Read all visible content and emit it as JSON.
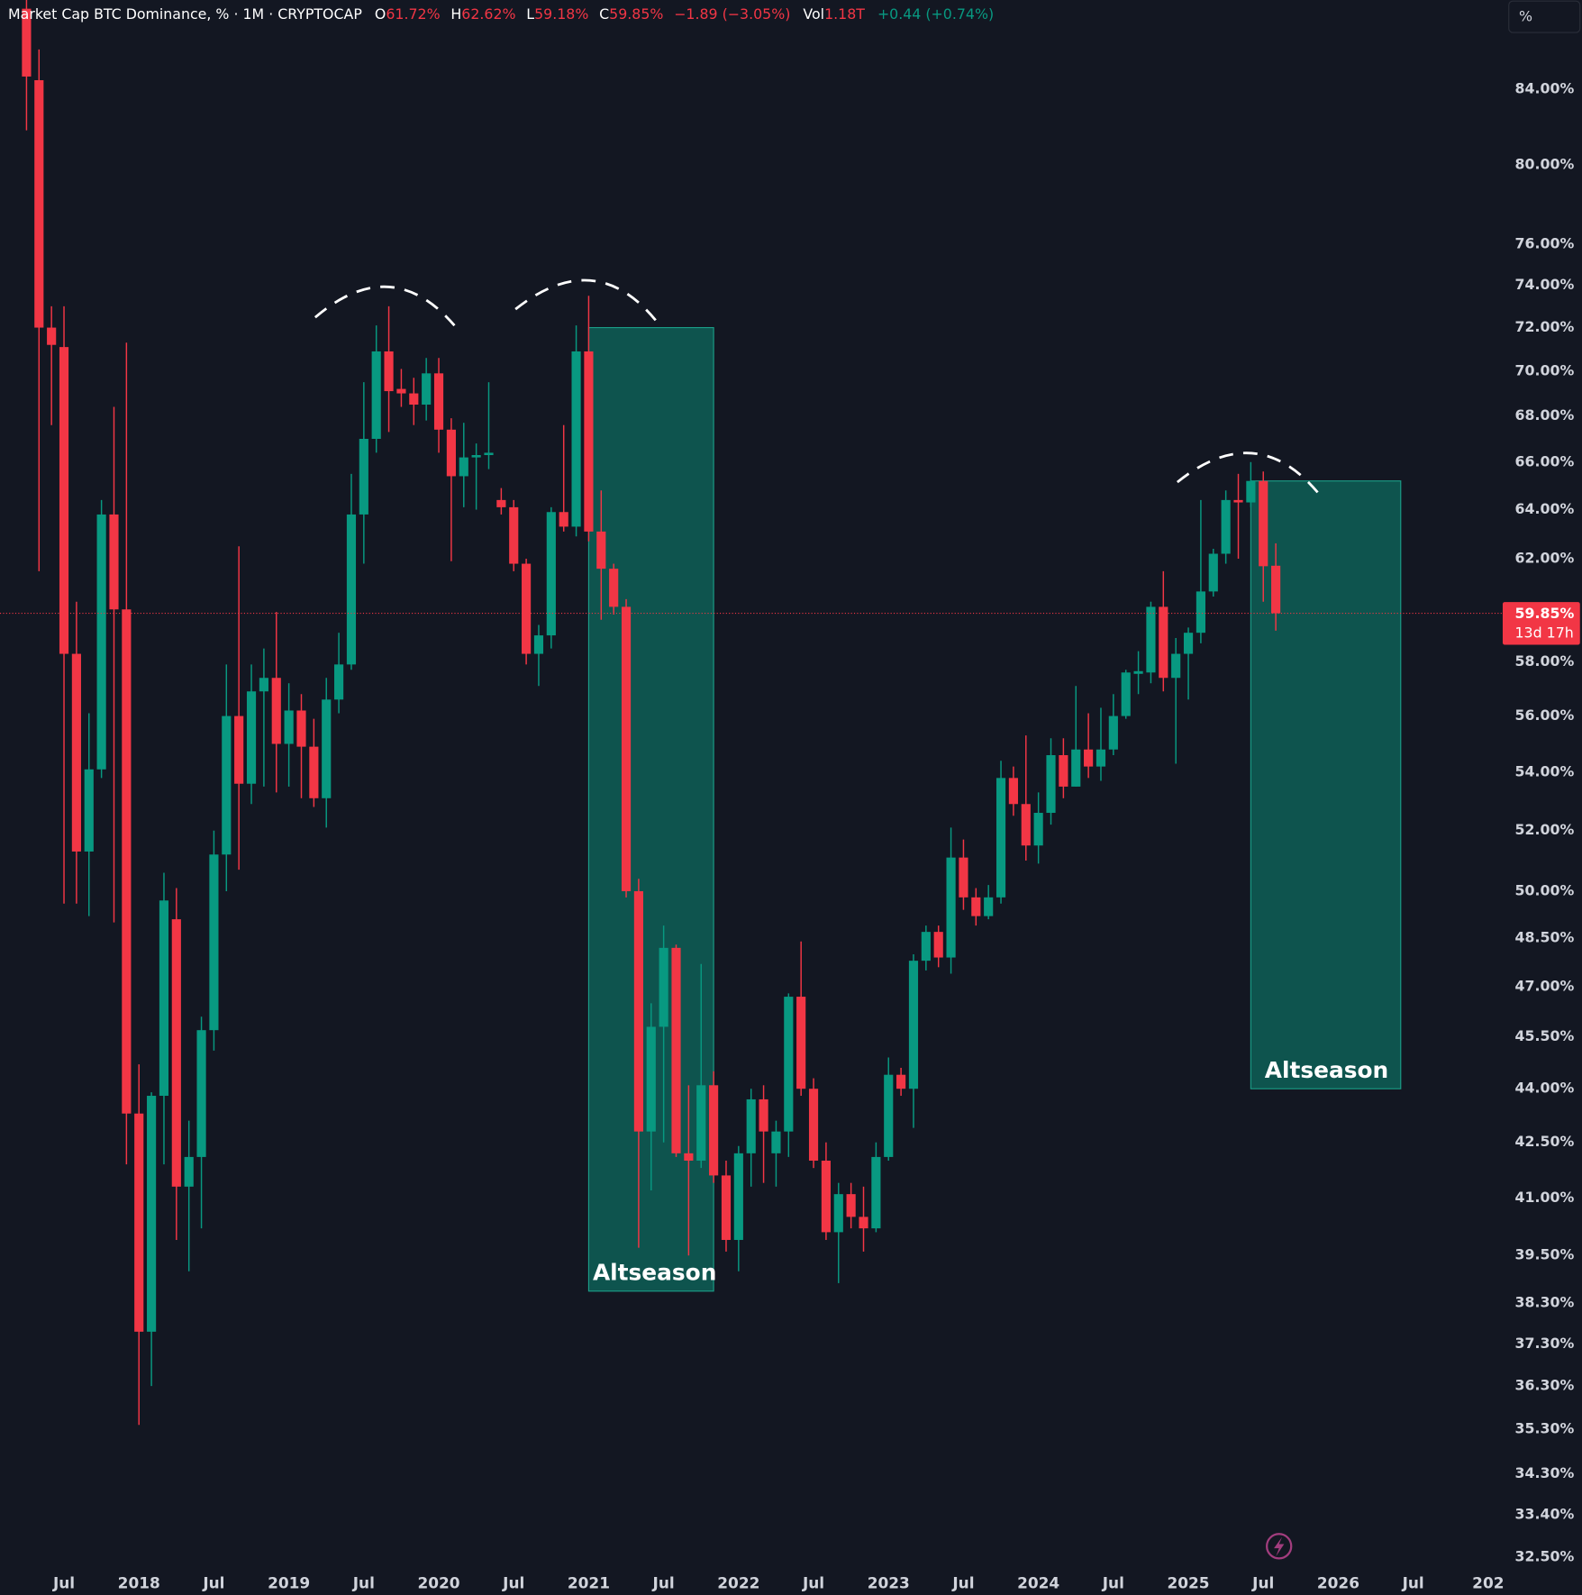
{
  "header": {
    "symbol": "Market Cap BTC Dominance, % · 1M · CRYPTOCAP",
    "fields": [
      {
        "key": "O",
        "value": "61.72%"
      },
      {
        "key": "H",
        "value": "62.62%"
      },
      {
        "key": "L",
        "value": "59.18%"
      },
      {
        "key": "C",
        "value": "59.85%"
      }
    ],
    "change": "−1.89 (−3.05%)",
    "volume_key": "Vol",
    "volume": "1.18T",
    "volume_change": "+0.44 (+0.74%)"
  },
  "toolbar": {
    "unit_button": "%"
  },
  "chart_data": {
    "type": "candlestick",
    "log_scale": true,
    "grid": false,
    "up_color": "#089981",
    "down_color": "#f23645",
    "x": [
      "2017-04",
      "2017-05",
      "2017-06",
      "2017-07",
      "2017-08",
      "2017-09",
      "2017-10",
      "2017-11",
      "2017-12",
      "2018-01",
      "2018-02",
      "2018-03",
      "2018-04",
      "2018-05",
      "2018-06",
      "2018-07",
      "2018-08",
      "2018-09",
      "2018-10",
      "2018-11",
      "2018-12",
      "2019-01",
      "2019-02",
      "2019-03",
      "2019-04",
      "2019-05",
      "2019-06",
      "2019-07",
      "2019-08",
      "2019-09",
      "2019-10",
      "2019-11",
      "2019-12",
      "2020-01",
      "2020-02",
      "2020-03",
      "2020-04",
      "2020-05",
      "2020-06",
      "2020-07",
      "2020-08",
      "2020-09",
      "2020-10",
      "2020-11",
      "2020-12",
      "2021-01",
      "2021-02",
      "2021-03",
      "2021-04",
      "2021-05",
      "2021-06",
      "2021-07",
      "2021-08",
      "2021-09",
      "2021-10",
      "2021-11",
      "2021-12",
      "2022-01",
      "2022-02",
      "2022-03",
      "2022-04",
      "2022-05",
      "2022-06",
      "2022-07",
      "2022-08",
      "2022-09",
      "2022-10",
      "2022-11",
      "2022-12",
      "2023-01",
      "2023-02",
      "2023-03",
      "2023-04",
      "2023-05",
      "2023-06",
      "2023-07",
      "2023-08",
      "2023-09",
      "2023-10",
      "2023-11",
      "2023-12",
      "2024-01",
      "2024-02",
      "2024-03",
      "2024-04",
      "2024-05",
      "2024-06",
      "2024-07",
      "2024-08",
      "2024-09",
      "2024-10",
      "2024-11",
      "2024-12",
      "2025-01",
      "2025-02",
      "2025-03",
      "2025-04",
      "2025-05",
      "2025-06",
      "2025-07",
      "2025-08"
    ],
    "open": [
      88.5,
      84.5,
      72.0,
      71.1,
      58.3,
      51.3,
      54.1,
      63.8,
      60.0,
      43.3,
      37.6,
      43.8,
      49.1,
      41.3,
      42.1,
      45.7,
      51.2,
      56.0,
      53.6,
      56.9,
      57.4,
      55.0,
      56.2,
      54.9,
      53.1,
      56.6,
      57.9,
      63.8,
      67.0,
      70.9,
      69.2,
      69.0,
      68.5,
      69.9,
      67.4,
      65.4,
      66.2,
      66.3,
      64.4,
      64.1,
      61.8,
      58.3,
      59.0,
      63.9,
      63.3,
      70.9,
      63.1,
      61.6,
      60.1,
      50.0,
      42.8,
      45.8,
      48.2,
      42.2,
      42.0,
      44.1,
      41.6,
      39.9,
      42.2,
      43.7,
      42.2,
      42.8,
      46.7,
      44.0,
      42.0,
      40.1,
      41.1,
      40.5,
      40.2,
      42.1,
      44.4,
      44.0,
      47.8,
      48.7,
      47.9,
      51.1,
      49.8,
      49.2,
      49.8,
      53.8,
      52.9,
      51.5,
      52.6,
      54.6,
      53.5,
      54.8,
      54.2,
      54.8,
      56.0,
      57.55,
      57.6,
      60.1,
      57.4,
      58.3,
      59.1,
      60.7,
      62.2,
      64.4,
      64.3,
      65.2,
      61.72
    ],
    "high": [
      90,
      86.2,
      73.0,
      73.0,
      60.3,
      56.1,
      64.4,
      68.4,
      71.3,
      44.7,
      43.9,
      50.6,
      50.1,
      43.1,
      46.1,
      52.0,
      57.9,
      62.5,
      57.9,
      58.5,
      59.9,
      57.2,
      56.8,
      55.9,
      57.4,
      59.1,
      65.5,
      69.5,
      72.1,
      73.0,
      70.1,
      69.7,
      70.6,
      70.6,
      67.9,
      67.7,
      66.8,
      69.5,
      64.9,
      64.4,
      62.0,
      59.4,
      64.1,
      67.6,
      72.1,
      73.5,
      64.8,
      61.8,
      60.4,
      50.4,
      46.5,
      48.9,
      48.3,
      44.1,
      47.7,
      44.5,
      42.0,
      42.4,
      44.0,
      44.1,
      43.1,
      46.8,
      48.4,
      44.3,
      42.5,
      41.4,
      41.4,
      41.3,
      42.5,
      44.9,
      44.6,
      48.0,
      48.9,
      48.9,
      52.1,
      51.7,
      50.1,
      50.2,
      54.4,
      54.2,
      55.3,
      53.3,
      55.2,
      55.2,
      57.1,
      56.1,
      56.3,
      56.8,
      57.7,
      58.4,
      60.3,
      61.5,
      58.9,
      59.3,
      64.4,
      62.4,
      64.8,
      65.5,
      66.0,
      65.6,
      62.62
    ],
    "low": [
      81.8,
      61.5,
      67.6,
      49.6,
      49.6,
      49.2,
      53.8,
      49.0,
      41.9,
      35.4,
      36.3,
      41.9,
      39.9,
      39.1,
      40.2,
      45.1,
      50.0,
      50.7,
      52.9,
      53.5,
      53.3,
      53.5,
      53.1,
      52.8,
      52.1,
      56.1,
      57.7,
      61.8,
      66.4,
      67.3,
      68.4,
      67.6,
      67.8,
      66.4,
      61.9,
      64.1,
      64.0,
      65.7,
      63.8,
      61.5,
      57.9,
      57.1,
      58.5,
      63.1,
      62.9,
      62.7,
      59.6,
      59.8,
      49.8,
      39.7,
      41.2,
      42.5,
      42.1,
      39.5,
      41.8,
      41.4,
      39.6,
      39.1,
      41.3,
      41.4,
      41.3,
      42.1,
      43.8,
      41.8,
      39.9,
      38.8,
      40.2,
      39.6,
      40.1,
      42.0,
      43.8,
      42.9,
      47.5,
      47.6,
      47.4,
      49.4,
      48.9,
      49.1,
      49.6,
      52.5,
      51.0,
      50.9,
      52.2,
      53.1,
      53.5,
      53.8,
      53.7,
      54.6,
      55.9,
      56.8,
      57.2,
      56.9,
      54.3,
      56.6,
      58.7,
      60.5,
      61.8,
      62.0,
      64.1,
      60.3,
      59.18
    ],
    "close": [
      84.7,
      72.0,
      71.2,
      58.3,
      51.3,
      54.1,
      63.8,
      60.0,
      43.3,
      37.6,
      43.8,
      49.7,
      41.3,
      42.1,
      45.7,
      51.2,
      56.0,
      53.6,
      56.9,
      57.4,
      55.0,
      56.2,
      54.9,
      53.1,
      56.6,
      57.9,
      63.8,
      67.0,
      70.9,
      69.1,
      69.0,
      68.5,
      69.9,
      67.4,
      65.4,
      66.2,
      66.3,
      66.4,
      64.1,
      61.8,
      58.3,
      59.0,
      63.9,
      63.3,
      70.9,
      63.1,
      61.6,
      60.1,
      50.0,
      42.8,
      45.8,
      48.2,
      42.2,
      42.0,
      44.1,
      41.6,
      39.9,
      42.2,
      43.7,
      42.8,
      42.8,
      46.7,
      44.0,
      42.0,
      40.1,
      41.1,
      40.5,
      40.2,
      42.1,
      44.4,
      44.0,
      47.8,
      48.7,
      47.9,
      51.1,
      49.8,
      49.2,
      49.8,
      53.8,
      52.9,
      51.5,
      52.6,
      54.6,
      53.5,
      54.8,
      54.2,
      54.8,
      56.0,
      57.6,
      57.65,
      60.1,
      57.4,
      58.3,
      59.1,
      60.7,
      62.2,
      64.4,
      64.3,
      65.2,
      61.7,
      59.85
    ],
    "xlim": [
      "2017-02",
      "2027-02"
    ],
    "xticks": [
      {
        "value": "2017-07",
        "label": "Jul"
      },
      {
        "value": "2018-01",
        "label": "2018"
      },
      {
        "value": "2018-07",
        "label": "Jul"
      },
      {
        "value": "2019-01",
        "label": "2019"
      },
      {
        "value": "2019-07",
        "label": "Jul"
      },
      {
        "value": "2020-01",
        "label": "2020"
      },
      {
        "value": "2020-07",
        "label": "Jul"
      },
      {
        "value": "2021-01",
        "label": "2021"
      },
      {
        "value": "2021-07",
        "label": "Jul"
      },
      {
        "value": "2022-01",
        "label": "2022"
      },
      {
        "value": "2022-07",
        "label": "Jul"
      },
      {
        "value": "2023-01",
        "label": "2023"
      },
      {
        "value": "2023-07",
        "label": "Jul"
      },
      {
        "value": "2024-01",
        "label": "2024"
      },
      {
        "value": "2024-07",
        "label": "Jul"
      },
      {
        "value": "2025-01",
        "label": "2025"
      },
      {
        "value": "2025-07",
        "label": "Jul"
      },
      {
        "value": "2026-01",
        "label": "2026"
      },
      {
        "value": "2026-07",
        "label": "Jul"
      },
      {
        "value": "2027-01",
        "label": "202"
      }
    ],
    "ylim": [
      32.3,
      89
    ],
    "yticks": [
      {
        "value": 84,
        "label": "84.00%"
      },
      {
        "value": 80,
        "label": "80.00%"
      },
      {
        "value": 76,
        "label": "76.00%"
      },
      {
        "value": 74,
        "label": "74.00%"
      },
      {
        "value": 72,
        "label": "72.00%"
      },
      {
        "value": 70,
        "label": "70.00%"
      },
      {
        "value": 68,
        "label": "68.00%"
      },
      {
        "value": 66,
        "label": "66.00%"
      },
      {
        "value": 64,
        "label": "64.00%"
      },
      {
        "value": 62,
        "label": "62.00%"
      },
      {
        "value": 58,
        "label": "58.00%"
      },
      {
        "value": 56,
        "label": "56.00%"
      },
      {
        "value": 54,
        "label": "54.00%"
      },
      {
        "value": 52,
        "label": "52.00%"
      },
      {
        "value": 50,
        "label": "50.00%"
      },
      {
        "value": 48.5,
        "label": "48.50%"
      },
      {
        "value": 47,
        "label": "47.00%"
      },
      {
        "value": 45.5,
        "label": "45.50%"
      },
      {
        "value": 44,
        "label": "44.00%"
      },
      {
        "value": 42.5,
        "label": "42.50%"
      },
      {
        "value": 41,
        "label": "41.00%"
      },
      {
        "value": 39.5,
        "label": "39.50%"
      },
      {
        "value": 38.3,
        "label": "38.30%"
      },
      {
        "value": 37.3,
        "label": "37.30%"
      },
      {
        "value": 36.3,
        "label": "36.30%"
      },
      {
        "value": 35.3,
        "label": "35.30%"
      },
      {
        "value": 34.3,
        "label": "34.30%"
      },
      {
        "value": 33.4,
        "label": "33.40%"
      },
      {
        "value": 32.5,
        "label": "32.50%"
      }
    ],
    "price_label": {
      "value_label": "59.85%",
      "countdown": "13d 17h"
    },
    "zones": [
      {
        "label": "Altseason",
        "x": [
          "2021-01",
          "2021-11"
        ],
        "y": [
          72,
          38.6
        ],
        "label_position": "bottom-left"
      },
      {
        "label": "Altseason",
        "x": [
          "2025-06",
          "2026-06"
        ],
        "y": [
          65.2,
          44.0
        ],
        "label_position": "bottom-right"
      }
    ]
  }
}
